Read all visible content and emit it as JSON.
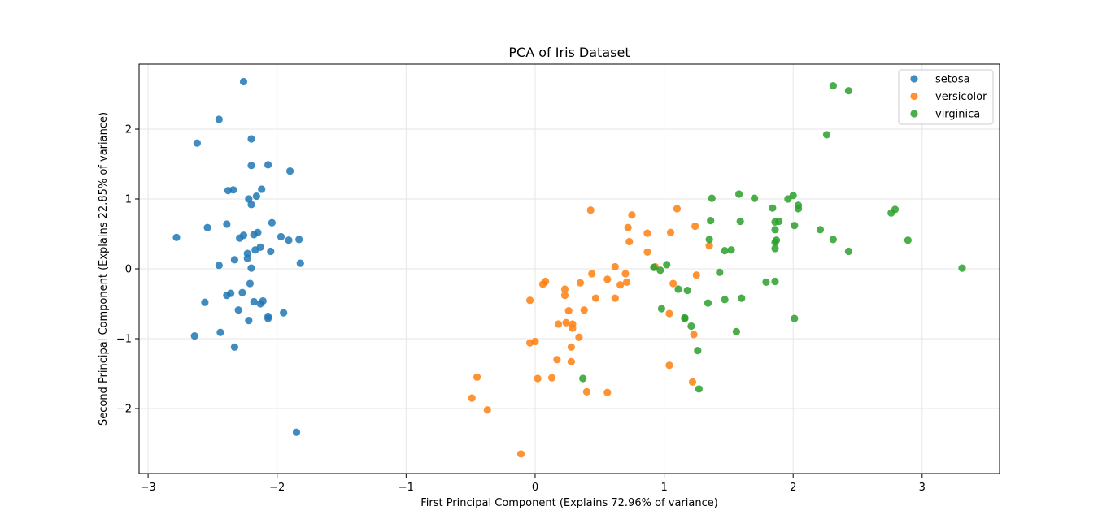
{
  "chart_data": {
    "type": "scatter",
    "title": "PCA of Iris Dataset",
    "xlabel": "First Principal Component (Explains 72.96% of variance)",
    "ylabel": "Second Principal Component (Explains 22.85% of variance)",
    "xlim": [
      -3.07,
      3.6
    ],
    "ylim": [
      -2.93,
      2.93
    ],
    "xticks": [
      -3,
      -2,
      -1,
      0,
      1,
      2,
      3
    ],
    "yticks": [
      -2,
      -1,
      0,
      1,
      2
    ],
    "grid": true,
    "legend_position": "top-right",
    "series": [
      {
        "name": "setosa",
        "color": "#1f77b4",
        "points": [
          [
            -2.26,
            2.68
          ],
          [
            -2.45,
            2.14
          ],
          [
            -2.62,
            1.8
          ],
          [
            -2.2,
            1.86
          ],
          [
            -2.07,
            1.49
          ],
          [
            -2.2,
            1.48
          ],
          [
            -1.9,
            1.4
          ],
          [
            -2.12,
            1.14
          ],
          [
            -2.38,
            1.12
          ],
          [
            -2.34,
            1.13
          ],
          [
            -2.16,
            1.04
          ],
          [
            -2.22,
            1.0
          ],
          [
            -2.2,
            0.92
          ],
          [
            -2.04,
            0.66
          ],
          [
            -2.39,
            0.64
          ],
          [
            -2.54,
            0.59
          ],
          [
            -2.15,
            0.52
          ],
          [
            -2.26,
            0.48
          ],
          [
            -2.18,
            0.49
          ],
          [
            -2.29,
            0.44
          ],
          [
            -1.97,
            0.46
          ],
          [
            -2.78,
            0.45
          ],
          [
            -1.91,
            0.41
          ],
          [
            -1.83,
            0.42
          ],
          [
            -2.13,
            0.31
          ],
          [
            -2.17,
            0.27
          ],
          [
            -2.05,
            0.25
          ],
          [
            -2.23,
            0.22
          ],
          [
            -2.23,
            0.15
          ],
          [
            -2.33,
            0.13
          ],
          [
            -1.82,
            0.08
          ],
          [
            -2.45,
            0.05
          ],
          [
            -2.2,
            0.01
          ],
          [
            -2.21,
            -0.21
          ],
          [
            -2.36,
            -0.35
          ],
          [
            -2.39,
            -0.38
          ],
          [
            -2.27,
            -0.34
          ],
          [
            -2.56,
            -0.48
          ],
          [
            -2.18,
            -0.47
          ],
          [
            -2.11,
            -0.46
          ],
          [
            -2.13,
            -0.5
          ],
          [
            -2.3,
            -0.59
          ],
          [
            -1.95,
            -0.63
          ],
          [
            -2.07,
            -0.68
          ],
          [
            -2.07,
            -0.71
          ],
          [
            -2.22,
            -0.74
          ],
          [
            -2.44,
            -0.91
          ],
          [
            -2.64,
            -0.96
          ],
          [
            -2.33,
            -1.12
          ],
          [
            -1.85,
            -2.34
          ]
        ]
      },
      {
        "name": "versicolor",
        "color": "#ff7f0e",
        "points": [
          [
            0.43,
            0.84
          ],
          [
            1.1,
            0.86
          ],
          [
            0.75,
            0.77
          ],
          [
            1.24,
            0.61
          ],
          [
            0.72,
            0.59
          ],
          [
            0.87,
            0.51
          ],
          [
            1.05,
            0.52
          ],
          [
            0.73,
            0.39
          ],
          [
            1.35,
            0.33
          ],
          [
            0.87,
            0.24
          ],
          [
            0.93,
            0.03
          ],
          [
            0.62,
            0.03
          ],
          [
            0.44,
            -0.07
          ],
          [
            0.7,
            -0.07
          ],
          [
            1.25,
            -0.09
          ],
          [
            0.56,
            -0.15
          ],
          [
            0.71,
            -0.19
          ],
          [
            0.35,
            -0.2
          ],
          [
            0.08,
            -0.18
          ],
          [
            0.06,
            -0.22
          ],
          [
            0.66,
            -0.23
          ],
          [
            1.07,
            -0.21
          ],
          [
            0.23,
            -0.29
          ],
          [
            0.23,
            -0.38
          ],
          [
            0.47,
            -0.42
          ],
          [
            0.62,
            -0.42
          ],
          [
            -0.04,
            -0.45
          ],
          [
            0.38,
            -0.59
          ],
          [
            0.26,
            -0.6
          ],
          [
            0.29,
            -0.79
          ],
          [
            0.18,
            -0.79
          ],
          [
            0.24,
            -0.77
          ],
          [
            1.04,
            -0.64
          ],
          [
            0.29,
            -0.85
          ],
          [
            0.34,
            -0.98
          ],
          [
            1.23,
            -0.94
          ],
          [
            -0.04,
            -1.06
          ],
          [
            0.0,
            -1.04
          ],
          [
            0.28,
            -1.12
          ],
          [
            0.17,
            -1.3
          ],
          [
            0.28,
            -1.33
          ],
          [
            1.04,
            -1.38
          ],
          [
            -0.45,
            -1.55
          ],
          [
            0.13,
            -1.56
          ],
          [
            0.02,
            -1.57
          ],
          [
            1.22,
            -1.62
          ],
          [
            0.4,
            -1.76
          ],
          [
            0.56,
            -1.77
          ],
          [
            -0.49,
            -1.85
          ],
          [
            -0.37,
            -2.02
          ],
          [
            -0.11,
            -2.65
          ]
        ]
      },
      {
        "name": "virginica",
        "color": "#2ca02c",
        "points": [
          [
            2.31,
            2.62
          ],
          [
            2.43,
            2.55
          ],
          [
            2.26,
            1.92
          ],
          [
            1.58,
            1.07
          ],
          [
            2.0,
            1.05
          ],
          [
            1.37,
            1.01
          ],
          [
            1.7,
            1.01
          ],
          [
            1.96,
            1.0
          ],
          [
            2.04,
            0.91
          ],
          [
            2.04,
            0.86
          ],
          [
            1.84,
            0.87
          ],
          [
            2.79,
            0.85
          ],
          [
            2.76,
            0.8
          ],
          [
            1.36,
            0.69
          ],
          [
            1.59,
            0.68
          ],
          [
            1.86,
            0.67
          ],
          [
            1.89,
            0.68
          ],
          [
            2.01,
            0.62
          ],
          [
            2.21,
            0.56
          ],
          [
            1.86,
            0.56
          ],
          [
            1.35,
            0.42
          ],
          [
            2.31,
            0.42
          ],
          [
            1.87,
            0.41
          ],
          [
            2.89,
            0.41
          ],
          [
            1.86,
            0.38
          ],
          [
            1.86,
            0.29
          ],
          [
            1.52,
            0.27
          ],
          [
            1.47,
            0.26
          ],
          [
            2.43,
            0.25
          ],
          [
            1.02,
            0.06
          ],
          [
            0.92,
            0.02
          ],
          [
            0.97,
            -0.02
          ],
          [
            3.31,
            0.01
          ],
          [
            1.43,
            -0.05
          ],
          [
            1.79,
            -0.19
          ],
          [
            1.86,
            -0.18
          ],
          [
            1.11,
            -0.29
          ],
          [
            1.18,
            -0.31
          ],
          [
            1.6,
            -0.42
          ],
          [
            1.47,
            -0.44
          ],
          [
            1.34,
            -0.49
          ],
          [
            0.98,
            -0.57
          ],
          [
            1.16,
            -0.71
          ],
          [
            1.16,
            -0.7
          ],
          [
            2.01,
            -0.71
          ],
          [
            1.21,
            -0.82
          ],
          [
            1.56,
            -0.9
          ],
          [
            1.26,
            -1.17
          ],
          [
            0.37,
            -1.57
          ],
          [
            1.27,
            -1.72
          ]
        ]
      }
    ]
  }
}
